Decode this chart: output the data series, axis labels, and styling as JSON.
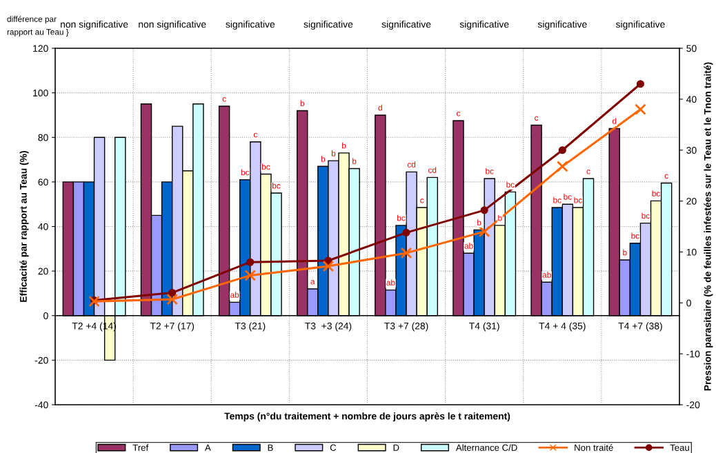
{
  "chart_data": {
    "type": "bar",
    "xlabel": "Temps (n°du traitement + nombre de jours après le t raitement)",
    "ylabel": "Efficacité par rapport au Teau (%)",
    "y2label": "Pression parasitaire (% de feuilles infestées sur le Teau et le Tnon traité)",
    "categories": [
      "T2 +4 (14)",
      "T2 +7 (17)",
      "T3 (21)",
      "T3  +3 (24)",
      "T3 +7 (28)",
      "T4 (31)",
      "T4 + 4 (35)",
      "T4 +7 (38)"
    ],
    "series": [
      {
        "name": "Tref",
        "color": "#993366",
        "values": [
          60,
          95,
          94,
          92,
          90,
          87.5,
          85.5,
          84
        ],
        "value_labels": [
          null,
          null,
          "c",
          "b",
          "d",
          "c",
          "c",
          "d"
        ]
      },
      {
        "name": "A",
        "color": "#9999ff",
        "values": [
          60,
          45,
          6,
          12,
          11.5,
          28,
          15,
          25
        ],
        "value_labels": [
          null,
          null,
          "ab",
          "a",
          "ab",
          "ab",
          "ab",
          "b"
        ]
      },
      {
        "name": "B",
        "color": "#0066cc",
        "values": [
          60,
          60,
          61,
          67,
          40.5,
          38.5,
          48.5,
          32.5
        ],
        "value_labels": [
          null,
          null,
          "bc",
          "b",
          "bc",
          "b",
          "bc",
          "bc"
        ]
      },
      {
        "name": "C",
        "color": "#ccccff",
        "values": [
          80,
          85,
          78,
          69.5,
          64.5,
          61.5,
          50,
          41.5
        ],
        "value_labels": [
          null,
          null,
          "c",
          "b",
          "cd",
          "bc",
          "bc",
          "bc"
        ]
      },
      {
        "name": "D",
        "color": "#ffffcc",
        "values": [
          -20,
          65,
          63.5,
          73,
          48.5,
          40.5,
          48.5,
          51.5
        ],
        "value_labels": [
          null,
          null,
          "bc",
          "b",
          "c",
          "b",
          "bc",
          "bc"
        ]
      },
      {
        "name": "Alternance C/D",
        "color": "#ccffff",
        "values": [
          80,
          95,
          55,
          66,
          62,
          55.5,
          61.5,
          59.5
        ],
        "value_labels": [
          null,
          null,
          "bc",
          "b",
          "cd",
          "bc",
          "c",
          "c"
        ]
      },
      {
        "name": "Non traité",
        "type": "line",
        "axis": "y2",
        "color": "#ff6600",
        "marker": "cross",
        "values": [
          0.3,
          0.7,
          5.4,
          7.2,
          9.8,
          14,
          26.8,
          38
        ]
      },
      {
        "name": "Teau",
        "type": "line",
        "axis": "y2",
        "color": "#800000",
        "marker": "circle",
        "values": [
          0.5,
          2,
          8,
          8.3,
          13.8,
          18.2,
          30,
          43
        ]
      }
    ],
    "ylim": [
      -40,
      120
    ],
    "yticks": [
      -40,
      -20,
      0,
      20,
      40,
      60,
      80,
      100,
      120
    ],
    "y2lim": [
      -20,
      50
    ],
    "y2ticks": [
      -20,
      -10,
      0,
      10,
      20,
      30,
      40,
      50
    ],
    "grid": true,
    "legend": "bottom",
    "annotations": [
      "différence par\nrapport au Teau }",
      "non significative",
      "non significative",
      "significative",
      "significative",
      "significative",
      "significative",
      "significative",
      "significative"
    ]
  }
}
